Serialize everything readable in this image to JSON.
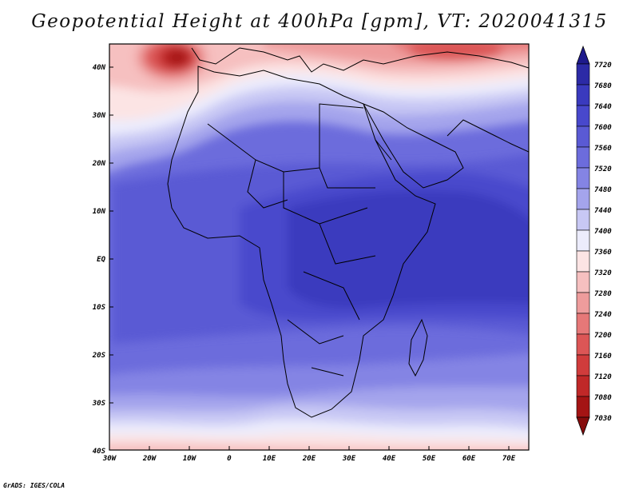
{
  "title": "Geopotential Height at 400hPa [gpm], VT: 2020041315",
  "credit": "GrADS: IGES/COLA",
  "lat_labels": [
    "40N",
    "30N",
    "20N",
    "10N",
    "EQ",
    "10S",
    "20S",
    "30S",
    "40S"
  ],
  "lon_labels": [
    "30W",
    "20W",
    "10W",
    "0",
    "10E",
    "20E",
    "30E",
    "40E",
    "50E",
    "60E",
    "70E"
  ],
  "colorbar": {
    "levels": [
      "7720",
      "7680",
      "7640",
      "7600",
      "7560",
      "7520",
      "7480",
      "7440",
      "7400",
      "7360",
      "7320",
      "7280",
      "7240",
      "7200",
      "7160",
      "7120",
      "7080",
      "7030"
    ],
    "colors": [
      "#1e1a8c",
      "#2c2aa6",
      "#3a3abe",
      "#4848cc",
      "#5a5ad4",
      "#6c6cdc",
      "#8484e4",
      "#a4a4ec",
      "#c8c8f4",
      "#ececfc",
      "#fce4e4",
      "#f6c0c0",
      "#ee9c9c",
      "#e67878",
      "#dc5656",
      "#d03c3c",
      "#c02828",
      "#a41414",
      "#860c0c"
    ]
  },
  "chart_data": {
    "type": "heatmap",
    "title": "Geopotential Height at 400hPa [gpm], VT: 2020041315",
    "x_range": [
      -30,
      75
    ],
    "y_range": [
      -40,
      45
    ],
    "colorbar_range": [
      7030,
      7720
    ],
    "highest_band": "7600-7640 over central-east Africa and western Indian Ocean",
    "lowest_band": "7030-7080 near the Iberian coast (~10W, 40N)"
  }
}
